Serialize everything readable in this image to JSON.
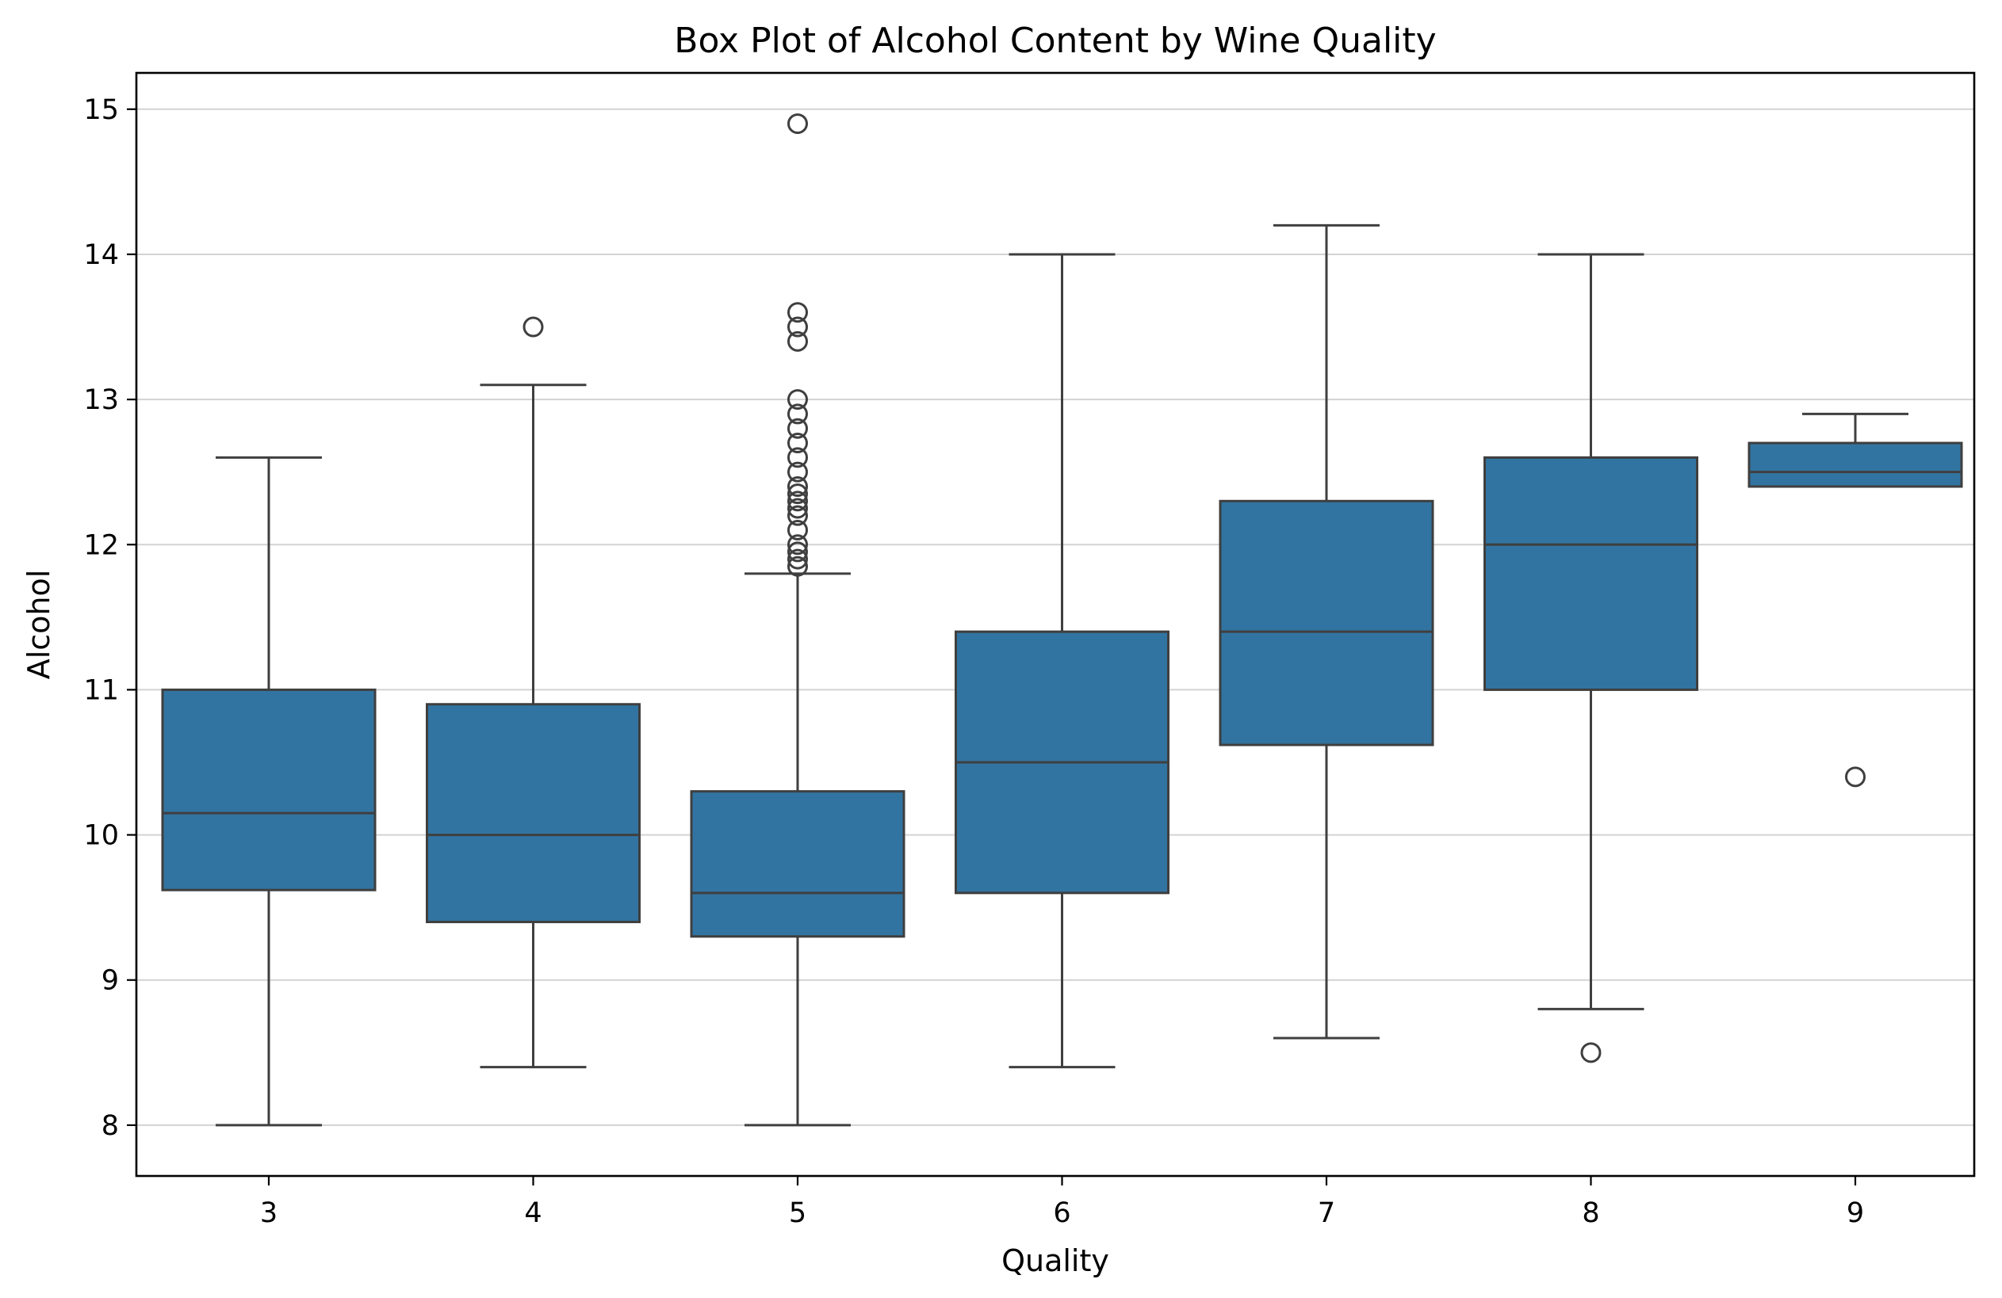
{
  "chart_data": {
    "type": "box",
    "title": "Box Plot of Alcohol Content by Wine Quality",
    "xlabel": "Quality",
    "ylabel": "Alcohol",
    "categories": [
      "3",
      "4",
      "5",
      "6",
      "7",
      "8",
      "9"
    ],
    "yticks": [
      8,
      9,
      10,
      11,
      12,
      13,
      14,
      15
    ],
    "ylim": [
      7.65,
      15.25
    ],
    "grid": "horizontal",
    "legend": "none",
    "box_color": "#3274a1",
    "line_color": "#3f3f3f",
    "boxes": [
      {
        "category": "3",
        "whisker_low": 8.0,
        "q1": 9.62,
        "median": 10.15,
        "q3": 11.0,
        "whisker_high": 12.6,
        "outliers": []
      },
      {
        "category": "4",
        "whisker_low": 8.4,
        "q1": 9.4,
        "median": 10.0,
        "q3": 10.9,
        "whisker_high": 13.1,
        "outliers": [
          13.5
        ]
      },
      {
        "category": "5",
        "whisker_low": 8.0,
        "q1": 9.3,
        "median": 9.6,
        "q3": 10.3,
        "whisker_high": 11.8,
        "outliers": [
          11.85,
          11.9,
          11.95,
          12.0,
          12.1,
          12.2,
          12.25,
          12.3,
          12.35,
          12.4,
          12.5,
          12.6,
          12.7,
          12.8,
          12.9,
          13.0,
          13.4,
          13.5,
          13.6,
          14.9
        ]
      },
      {
        "category": "6",
        "whisker_low": 8.4,
        "q1": 9.6,
        "median": 10.5,
        "q3": 11.4,
        "whisker_high": 14.0,
        "outliers": []
      },
      {
        "category": "7",
        "whisker_low": 8.6,
        "q1": 10.62,
        "median": 11.4,
        "q3": 12.3,
        "whisker_high": 14.2,
        "outliers": []
      },
      {
        "category": "8",
        "whisker_low": 8.8,
        "q1": 11.0,
        "median": 12.0,
        "q3": 12.6,
        "whisker_high": 14.0,
        "outliers": [
          8.5
        ]
      },
      {
        "category": "9",
        "whisker_low": 12.4,
        "q1": 12.4,
        "median": 12.5,
        "q3": 12.7,
        "whisker_high": 12.9,
        "outliers": [
          10.4
        ]
      }
    ]
  }
}
